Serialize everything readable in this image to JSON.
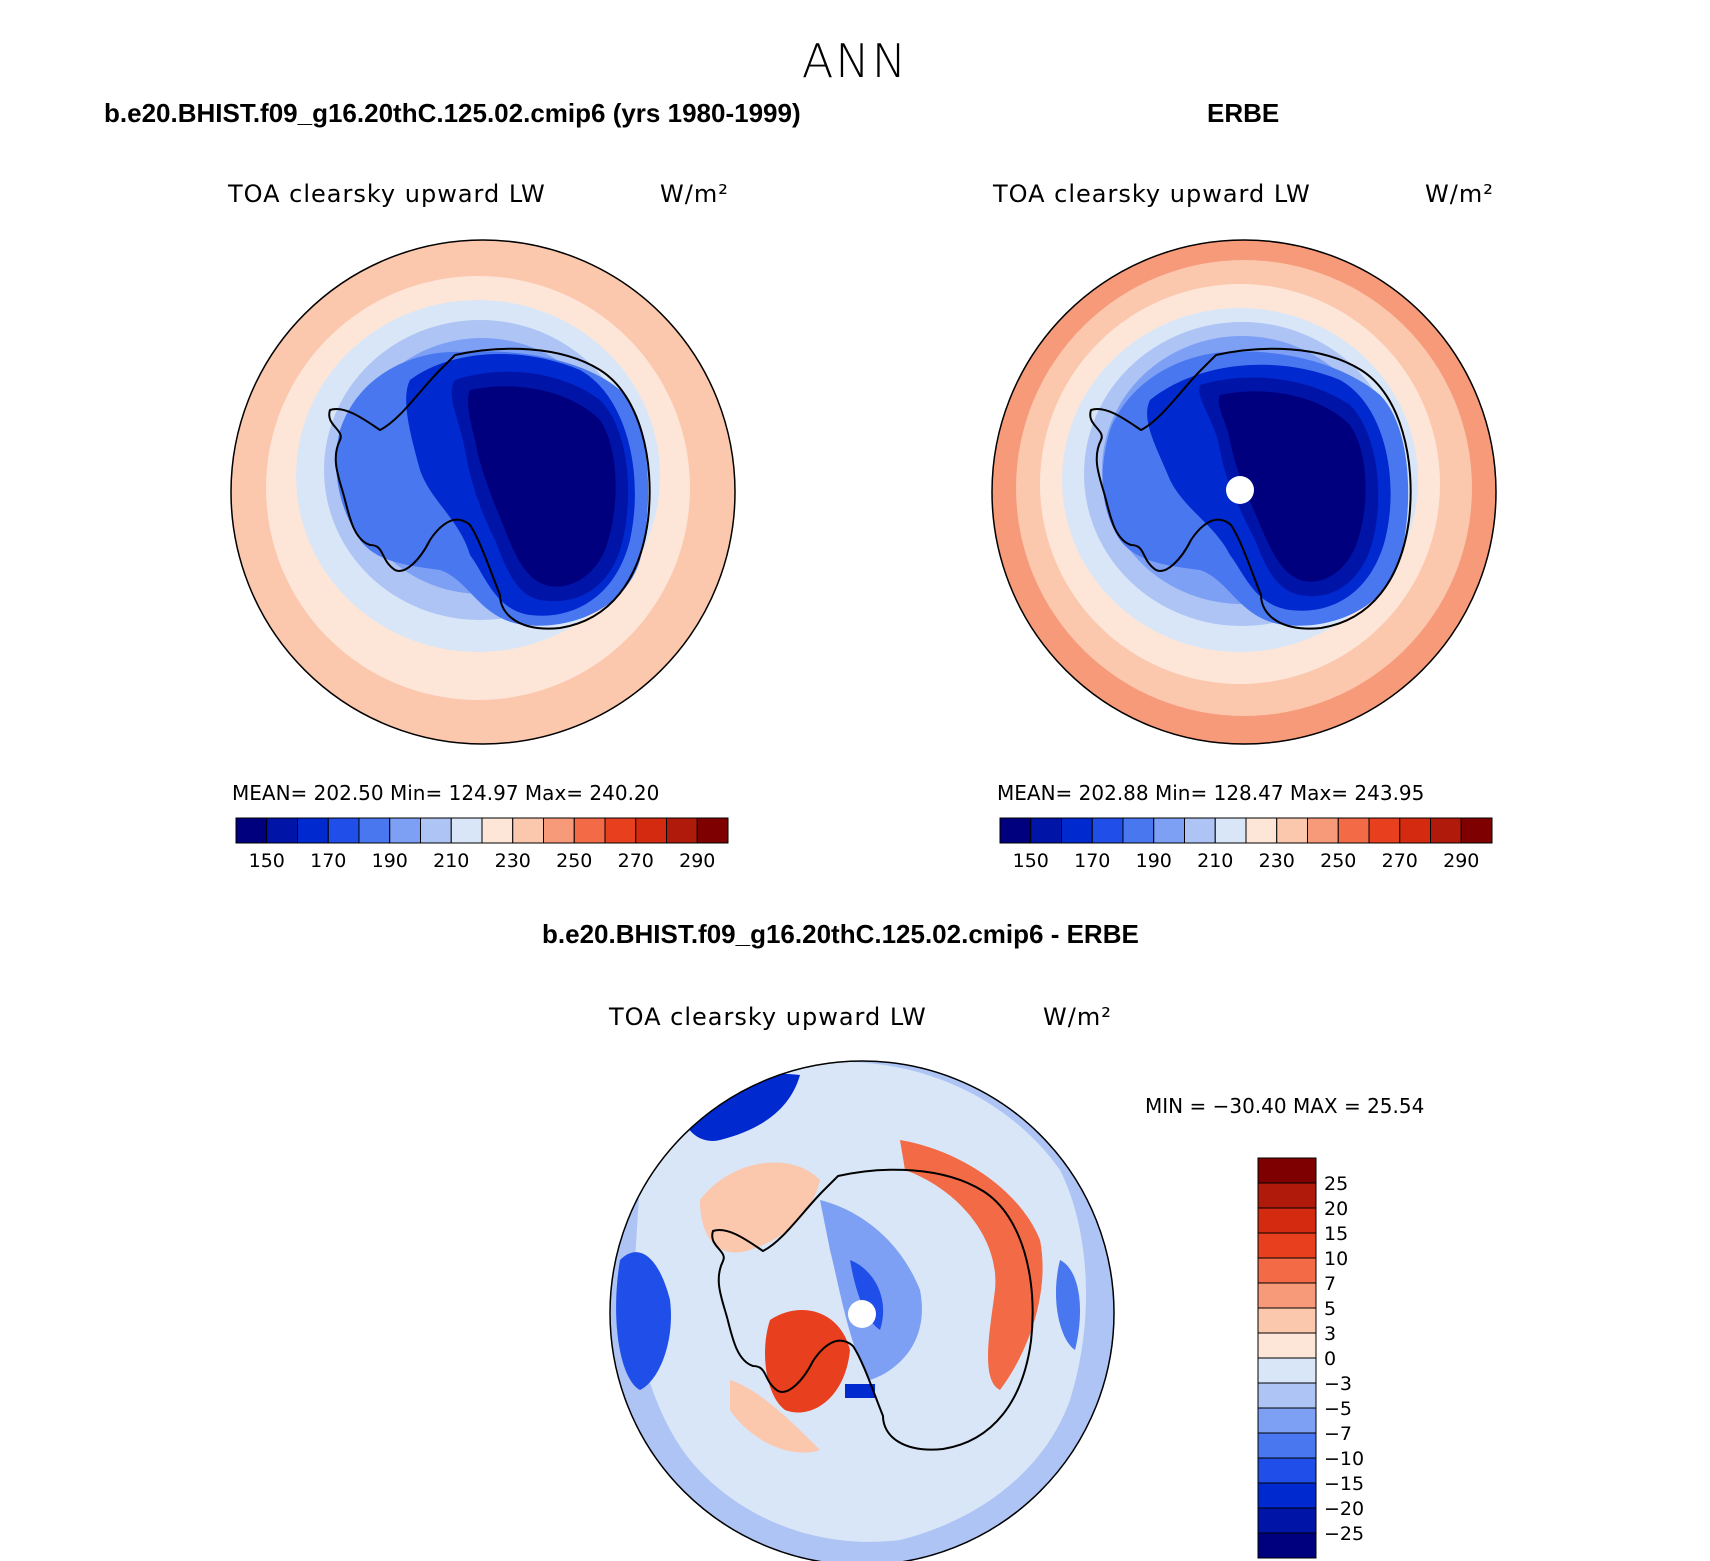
{
  "title": "ANN",
  "panels": [
    {
      "header": "b.e20.BHIST.f09_g16.20thC.125.02.cmip6 (yrs 1980-1999)",
      "subtitle": "TOA clearsky upward LW",
      "units": "W/m²",
      "stats": "MEAN= 202.50   Min= 124.97   Max= 240.20",
      "mean": 202.5,
      "min": 124.97,
      "max": 240.2,
      "colorbar_ticks": [
        "150",
        "170",
        "190",
        "210",
        "230",
        "250",
        "270",
        "290"
      ]
    },
    {
      "header": "ERBE",
      "subtitle": "TOA clearsky upward LW",
      "units": "W/m²",
      "stats": "MEAN= 202.88   Min= 128.47   Max= 243.95",
      "mean": 202.88,
      "min": 128.47,
      "max": 243.95,
      "colorbar_ticks": [
        "150",
        "170",
        "190",
        "210",
        "230",
        "250",
        "270",
        "290"
      ]
    },
    {
      "header": "b.e20.BHIST.f09_g16.20thC.125.02.cmip6 - ERBE",
      "subtitle": "TOA clearsky upward LW",
      "units": "W/m²",
      "stats": "MIN = −30.40 MAX =  25.54",
      "min": -30.4,
      "max": 25.54,
      "colorbar_ticks": [
        "25",
        "20",
        "15",
        "10",
        "7",
        "5",
        "3",
        "0",
        "−3",
        "−5",
        "−7",
        "−10",
        "−15",
        "−20",
        "−25"
      ]
    }
  ],
  "colors": {
    "abs_scale": [
      "#00007f",
      "#0015a8",
      "#0029cf",
      "#1f4ee8",
      "#4977f0",
      "#7da0f4",
      "#adc4f5",
      "#d9e6f7",
      "#fde6d8",
      "#fbc7ad",
      "#f79a79",
      "#f26a46",
      "#e8401f",
      "#d42a10",
      "#b01a0a",
      "#7f0000"
    ],
    "diff_scale": [
      "#00007f",
      "#0015a8",
      "#0029cf",
      "#1f4ee8",
      "#4977f0",
      "#7da0f4",
      "#adc4f5",
      "#d9e6f7",
      "#fde6d8",
      "#fbc7ad",
      "#f79a79",
      "#f26a46",
      "#e8401f",
      "#d42a10",
      "#b01a0a",
      "#7f0000"
    ]
  }
}
